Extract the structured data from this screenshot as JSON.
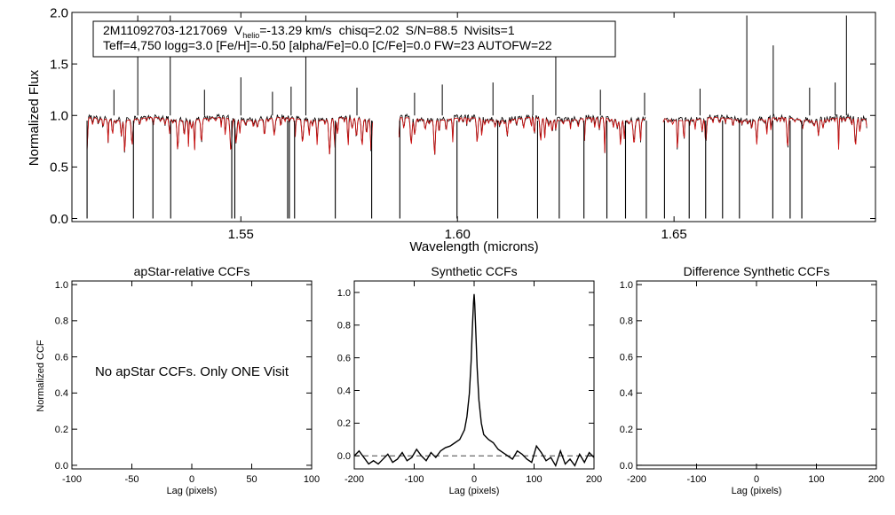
{
  "colors": {
    "observed": "#000000",
    "model": "#cc1111",
    "axis": "#000000",
    "dashed": "#444444",
    "background": "#ffffff"
  },
  "header": {
    "star_id": "2M11092703-1217069",
    "vhelio_symbol": "V",
    "vhelio_sub": "helio",
    "vhelio_value": "=-13.29 km/s",
    "chisq": "chisq=2.02",
    "snr": "S/N=88.5",
    "nvisits": "Nvisits=1",
    "params_line": "Teff=4,750 logg=3.0 [Fe/H]=-0.50 [alpha/Fe]=0.0 [C/Fe]=0.0 FW=23 AUTOFW=22"
  },
  "chart_data": [
    {
      "id": "spectrum",
      "type": "line",
      "title": "",
      "xlabel": "Wavelength (microns)",
      "ylabel": "Normalized Flux",
      "xlim": [
        1.511,
        1.6965
      ],
      "ylim": [
        -0.03,
        2.0
      ],
      "xticks": [
        1.55,
        1.6,
        1.65
      ],
      "xtick_labels": [
        "1.55",
        "1.60",
        "1.65"
      ],
      "yticks": [
        0.0,
        0.5,
        1.0,
        1.5,
        2.0
      ],
      "ytick_labels": [
        "0.0",
        "0.5",
        "1.0",
        "1.5",
        "2.0"
      ],
      "chip_ranges": [
        [
          1.5145,
          1.5805
        ],
        [
          1.5865,
          1.6435
        ],
        [
          1.6475,
          1.6945
        ]
      ],
      "series": [
        {
          "name": "observed",
          "color": "#000000"
        },
        {
          "name": "model",
          "color": "#cc1111"
        }
      ],
      "masked_lines": [
        1.5145,
        1.5252,
        1.5297,
        1.5338,
        1.5479,
        1.5486,
        1.5608,
        1.5612,
        1.5624,
        1.5718,
        1.5802,
        1.5867,
        1.5999,
        1.6093,
        1.6185,
        1.6235,
        1.6292,
        1.6345,
        1.6388,
        1.6436,
        1.6478,
        1.6535,
        1.6573,
        1.6612,
        1.6651,
        1.6728,
        1.6768,
        1.6795
      ],
      "emission_spikes": [
        [
          1.5207,
          1.25
        ],
        [
          1.5262,
          1.97
        ],
        [
          1.5337,
          1.97
        ],
        [
          1.5416,
          1.25
        ],
        [
          1.55,
          1.37
        ],
        [
          1.5573,
          1.23
        ],
        [
          1.5616,
          1.28
        ],
        [
          1.565,
          1.97
        ],
        [
          1.5768,
          1.27
        ],
        [
          1.5901,
          1.22
        ],
        [
          1.5965,
          1.3
        ],
        [
          1.6082,
          1.32
        ],
        [
          1.6174,
          1.2
        ],
        [
          1.6227,
          1.62
        ],
        [
          1.633,
          1.25
        ],
        [
          1.6432,
          1.22
        ],
        [
          1.656,
          1.26
        ],
        [
          1.6668,
          1.97
        ],
        [
          1.6729,
          1.68
        ],
        [
          1.6813,
          1.27
        ],
        [
          1.6872,
          1.32
        ],
        [
          1.6898,
          1.97
        ]
      ]
    },
    {
      "id": "apstar_ccf",
      "type": "line",
      "title": "apStar-relative CCFs",
      "xlabel": "Lag (pixels)",
      "ylabel": "Normalized CCF",
      "xlim": [
        -100,
        100
      ],
      "ylim": [
        -0.02,
        1.02
      ],
      "xticks": [
        -100,
        -50,
        0,
        50,
        100
      ],
      "xtick_labels": [
        "-100",
        "-50",
        "0",
        "50",
        "100"
      ],
      "yticks": [
        0.0,
        0.2,
        0.4,
        0.6,
        0.8,
        1.0
      ],
      "ytick_labels": [
        "0.0",
        "0.2",
        "0.4",
        "0.6",
        "0.8",
        "1.0"
      ],
      "message": "No apStar CCFs.  Only ONE Visit",
      "series": []
    },
    {
      "id": "synthetic_ccf",
      "type": "line",
      "title": "Synthetic CCFs",
      "xlabel": "Lag (pixels)",
      "ylabel": "",
      "xlim": [
        -200,
        200
      ],
      "ylim": [
        -0.08,
        1.07
      ],
      "xticks": [
        -200,
        -100,
        0,
        100,
        200
      ],
      "xtick_labels": [
        "-200",
        "-100",
        "0",
        "100",
        "200"
      ],
      "yticks": [
        0.0,
        0.2,
        0.4,
        0.6,
        0.8,
        1.0
      ],
      "ytick_labels": [
        "0.0",
        "0.2",
        "0.4",
        "0.6",
        "0.8",
        "1.0"
      ],
      "baseline": 0.0,
      "series": [
        {
          "name": "CCF",
          "x": [
            -200,
            -192,
            -184,
            -176,
            -168,
            -160,
            -152,
            -144,
            -136,
            -128,
            -120,
            -112,
            -104,
            -96,
            -88,
            -80,
            -72,
            -64,
            -56,
            -48,
            -40,
            -32,
            -24,
            -16,
            -12,
            -8,
            -5,
            -3,
            -1,
            0,
            1,
            3,
            5,
            8,
            12,
            16,
            24,
            32,
            40,
            48,
            56,
            64,
            72,
            80,
            88,
            96,
            104,
            112,
            120,
            128,
            136,
            144,
            152,
            160,
            168,
            176,
            184,
            192,
            200
          ],
          "y": [
            0.0,
            0.03,
            -0.01,
            -0.05,
            -0.03,
            -0.05,
            -0.02,
            0.01,
            -0.04,
            -0.02,
            0.02,
            -0.03,
            -0.01,
            0.04,
            0.0,
            -0.03,
            0.02,
            -0.01,
            0.03,
            0.05,
            0.06,
            0.08,
            0.1,
            0.16,
            0.24,
            0.38,
            0.58,
            0.78,
            0.94,
            0.99,
            0.93,
            0.74,
            0.54,
            0.34,
            0.2,
            0.13,
            0.1,
            0.08,
            0.04,
            0.02,
            0.0,
            -0.02,
            0.03,
            0.01,
            -0.02,
            -0.04,
            0.06,
            0.02,
            -0.03,
            -0.01,
            -0.06,
            0.03,
            -0.05,
            -0.02,
            -0.06,
            0.01,
            -0.04,
            0.02,
            -0.01
          ]
        }
      ]
    },
    {
      "id": "difference_ccf",
      "type": "line",
      "title": "Difference Synthetic CCFs",
      "xlabel": "Lag (pixels)",
      "ylabel": "",
      "xlim": [
        -200,
        200
      ],
      "ylim": [
        -0.02,
        1.02
      ],
      "xticks": [
        -200,
        -100,
        0,
        100,
        200
      ],
      "xtick_labels": [
        "-200",
        "-100",
        "0",
        "100",
        "200"
      ],
      "yticks": [
        0.0,
        0.2,
        0.4,
        0.6,
        0.8,
        1.0
      ],
      "ytick_labels": [
        "0.0",
        "0.2",
        "0.4",
        "0.6",
        "0.8",
        "1.0"
      ],
      "series": [
        {
          "name": "difference",
          "x": [
            -200,
            200
          ],
          "y": [
            0.0,
            0.0
          ]
        }
      ]
    }
  ]
}
